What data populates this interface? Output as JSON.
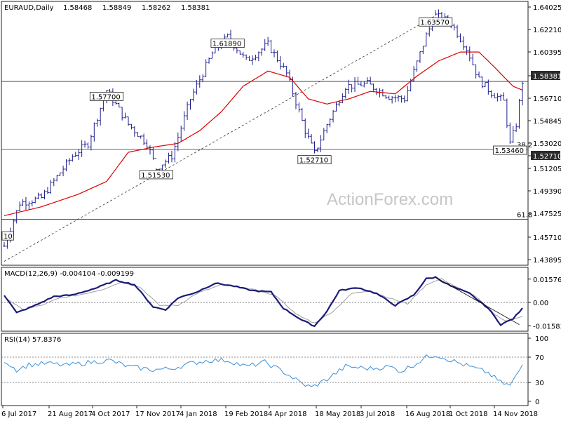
{
  "header": {
    "symbol": "EURAUD,Daily",
    "open": "1.58468",
    "high": "1.58849",
    "low": "1.58262",
    "close": "1.58381"
  },
  "watermark": "ActionForex.com",
  "colors": {
    "bars": "#1e1e8c",
    "moving_average": "#dd0000",
    "macd_line": "#1a1a7a",
    "signal_line": "#a0a0a0",
    "rsi_line": "#3a8fd8",
    "price_tag_bg": "#2b2b2b"
  },
  "chart_data": [
    {
      "type": "candlestick",
      "panel": "price",
      "x_tick_labels": [
        "6 Jul 2017",
        "21 Aug 2017",
        "4 Oct 2017",
        "17 Nov 2017",
        "4 Jan 2018",
        "19 Feb 2018",
        "4 Apr 2018",
        "18 May 2018",
        "3 Jul 2018",
        "16 Aug 2018",
        "1 Oct 2018",
        "14 Nov 2018"
      ],
      "y_tick_labels": [
        "1.64025",
        "1.62210",
        "1.60395",
        "1.58381",
        "1.56710",
        "1.54845",
        "1.53020",
        "1.52710",
        "1.51205",
        "1.49390",
        "1.47525",
        "1.45710",
        "1.43895"
      ],
      "ylim": [
        1.43895,
        1.64025
      ],
      "last_price": "1.58381",
      "series": [
        {
          "name": "price",
          "points": [
            [
              0,
              1.454
            ],
            [
              5,
              1.488
            ],
            [
              12,
              1.492
            ],
            [
              18,
              1.512
            ],
            [
              22,
              1.525
            ],
            [
              27,
              1.535
            ],
            [
              33,
              1.577
            ],
            [
              40,
              1.55
            ],
            [
              46,
              1.535
            ],
            [
              49,
              1.5153
            ],
            [
              54,
              1.525
            ],
            [
              60,
              1.57
            ],
            [
              67,
              1.606
            ],
            [
              72,
              1.6189
            ],
            [
              78,
              1.6
            ],
            [
              85,
              1.613
            ],
            [
              91,
              1.59
            ],
            [
              97,
              1.545
            ],
            [
              100,
              1.5271
            ],
            [
              104,
              1.55
            ],
            [
              110,
              1.58
            ],
            [
              117,
              1.582
            ],
            [
              124,
              1.572
            ],
            [
              129,
              1.57
            ],
            [
              136,
              1.62
            ],
            [
              139,
              1.6357
            ],
            [
              144,
              1.63
            ],
            [
              149,
              1.61
            ],
            [
              153,
              1.585
            ],
            [
              157,
              1.575
            ],
            [
              161,
              1.568
            ],
            [
              163,
              1.5346
            ],
            [
              165,
              1.55
            ],
            [
              167,
              1.5838
            ]
          ]
        },
        {
          "name": "moving average",
          "points": [
            [
              0,
              1.478
            ],
            [
              12,
              1.485
            ],
            [
              24,
              1.495
            ],
            [
              33,
              1.505
            ],
            [
              40,
              1.528
            ],
            [
              48,
              1.532
            ],
            [
              56,
              1.535
            ],
            [
              63,
              1.545
            ],
            [
              70,
              1.56
            ],
            [
              77,
              1.58
            ],
            [
              85,
              1.592
            ],
            [
              92,
              1.587
            ],
            [
              98,
              1.57
            ],
            [
              104,
              1.566
            ],
            [
              111,
              1.57
            ],
            [
              118,
              1.576
            ],
            [
              126,
              1.574
            ],
            [
              133,
              1.588
            ],
            [
              140,
              1.6
            ],
            [
              147,
              1.607
            ],
            [
              153,
              1.607
            ],
            [
              158,
              1.595
            ],
            [
              164,
              1.58
            ],
            [
              167,
              1.577
            ]
          ]
        }
      ],
      "annotations": [
        {
          "label": "1.63570",
          "bar": 139,
          "value": 1.6357
        },
        {
          "label": "1.61890",
          "bar": 72,
          "value": 1.6189
        },
        {
          "label": "1.57700",
          "bar": 33,
          "value": 1.577
        },
        {
          "label": "1.51530",
          "bar": 49,
          "value": 1.5153
        },
        {
          "label": "1.52710",
          "bar": 100,
          "value": 1.5271
        },
        {
          "label": "1.53460",
          "bar": 163,
          "value": 1.5346
        },
        {
          "label": "1.45710",
          "bar": 0,
          "value": 1.4571,
          "visible_text": "10"
        }
      ],
      "horizontal_lines": [
        {
          "value": 1.5838,
          "label": ""
        },
        {
          "value": 1.5302,
          "label": "38.2"
        },
        {
          "value": 1.4752,
          "label": "61.8"
        }
      ],
      "trendline": {
        "from": [
          0,
          1.442
        ],
        "to": [
          139,
          1.6357
        ]
      }
    },
    {
      "type": "line",
      "panel": "macd",
      "title": "MACD(12,26,9) -0.004104 -0.009199",
      "y_tick_labels": [
        "0.015762",
        "0.00",
        "-0.015834"
      ],
      "ylim": [
        -0.0185,
        0.0185
      ],
      "series": [
        {
          "name": "MACD",
          "points": [
            [
              0,
              0.005
            ],
            [
              4,
              -0.007
            ],
            [
              10,
              -0.002
            ],
            [
              16,
              0.004
            ],
            [
              22,
              0.005
            ],
            [
              30,
              0.01
            ],
            [
              36,
              0.015
            ],
            [
              42,
              0.012
            ],
            [
              48,
              -0.003
            ],
            [
              52,
              -0.005
            ],
            [
              56,
              0.003
            ],
            [
              62,
              0.007
            ],
            [
              68,
              0.013
            ],
            [
              74,
              0.011
            ],
            [
              80,
              0.008
            ],
            [
              86,
              0.007
            ],
            [
              90,
              -0.004
            ],
            [
              96,
              -0.012
            ],
            [
              100,
              -0.016
            ],
            [
              104,
              -0.006
            ],
            [
              108,
              0.008
            ],
            [
              114,
              0.01
            ],
            [
              120,
              0.006
            ],
            [
              126,
              -0.002
            ],
            [
              132,
              0.005
            ],
            [
              136,
              0.016
            ],
            [
              139,
              0.017
            ],
            [
              144,
              0.011
            ],
            [
              150,
              0.006
            ],
            [
              156,
              -0.004
            ],
            [
              160,
              -0.015
            ],
            [
              164,
              -0.011
            ],
            [
              167,
              -0.0041
            ]
          ]
        },
        {
          "name": "signal",
          "points": [
            [
              0,
              0.004
            ],
            [
              6,
              -0.005
            ],
            [
              12,
              -0.002
            ],
            [
              18,
              0.003
            ],
            [
              24,
              0.005
            ],
            [
              32,
              0.009
            ],
            [
              38,
              0.014
            ],
            [
              44,
              0.01
            ],
            [
              50,
              -0.002
            ],
            [
              56,
              -0.002
            ],
            [
              62,
              0.006
            ],
            [
              70,
              0.012
            ],
            [
              76,
              0.01
            ],
            [
              82,
              0.008
            ],
            [
              88,
              0.004
            ],
            [
              94,
              -0.008
            ],
            [
              100,
              -0.014
            ],
            [
              106,
              -0.006
            ],
            [
              112,
              0.006
            ],
            [
              118,
              0.008
            ],
            [
              124,
              0.003
            ],
            [
              130,
              -0.001
            ],
            [
              136,
              0.012
            ],
            [
              141,
              0.016
            ],
            [
              146,
              0.01
            ],
            [
              152,
              0.004
            ],
            [
              158,
              -0.008
            ],
            [
              162,
              -0.013
            ],
            [
              167,
              -0.0092
            ]
          ]
        }
      ],
      "trendline": {
        "from": [
          139,
          0.017
        ],
        "to": [
          166,
          -0.015
        ]
      }
    },
    {
      "type": "line",
      "panel": "rsi",
      "title": "RSI(14) 57.8376",
      "y_tick_labels": [
        "100",
        "70",
        "30",
        "0"
      ],
      "ylim": [
        0,
        100
      ],
      "levels": [
        70,
        30
      ],
      "series": [
        {
          "name": "RSI",
          "points": [
            [
              0,
              65
            ],
            [
              4,
              50
            ],
            [
              8,
              58
            ],
            [
              14,
              60
            ],
            [
              20,
              57
            ],
            [
              28,
              62
            ],
            [
              34,
              65
            ],
            [
              40,
              55
            ],
            [
              48,
              50
            ],
            [
              54,
              52
            ],
            [
              60,
              60
            ],
            [
              66,
              65
            ],
            [
              72,
              65
            ],
            [
              78,
              55
            ],
            [
              84,
              62
            ],
            [
              90,
              47
            ],
            [
              96,
              28
            ],
            [
              99,
              22
            ],
            [
              104,
              35
            ],
            [
              110,
              55
            ],
            [
              118,
              52
            ],
            [
              124,
              55
            ],
            [
              128,
              48
            ],
            [
              132,
              58
            ],
            [
              136,
              70
            ],
            [
              139,
              74
            ],
            [
              144,
              65
            ],
            [
              150,
              55
            ],
            [
              156,
              45
            ],
            [
              160,
              30
            ],
            [
              163,
              25
            ],
            [
              165,
              40
            ],
            [
              167,
              58
            ]
          ]
        }
      ]
    }
  ]
}
